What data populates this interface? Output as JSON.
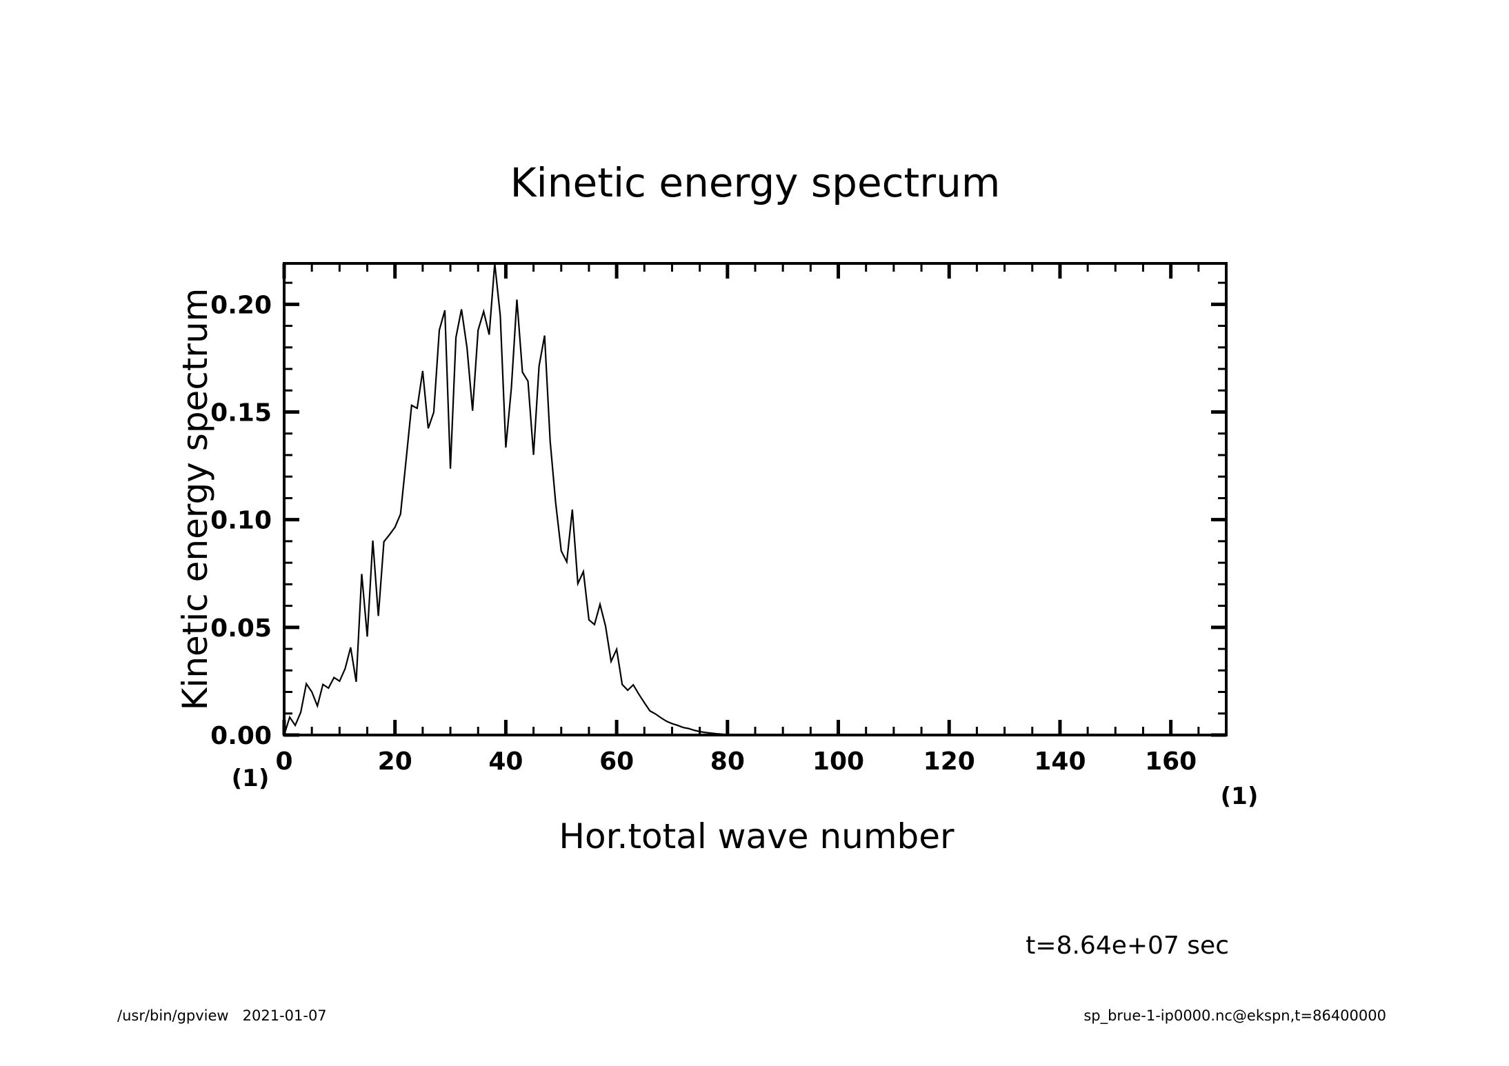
{
  "chart_data": {
    "type": "line",
    "title": "Kinetic energy spectrum",
    "xlabel": "Hor.total wave number",
    "ylabel": "Kinetic energy spectrum",
    "x_unit": "(1)",
    "y_unit": "(1)",
    "xlim": [
      0,
      170
    ],
    "ylim": [
      0,
      0.219
    ],
    "x_major_ticks": [
      0,
      20,
      40,
      60,
      80,
      100,
      120,
      140,
      160
    ],
    "x_tick_labels": [
      "0",
      "20",
      "40",
      "60",
      "80",
      "100",
      "120",
      "140",
      "160"
    ],
    "x_minor_step": 5,
    "y_major_ticks": [
      0,
      0.05,
      0.1,
      0.15,
      0.2
    ],
    "y_tick_labels": [
      "0.00",
      "0.05",
      "0.10",
      "0.15",
      "0.20"
    ],
    "y_minor_step": 0.01,
    "grid": false,
    "legend": "none",
    "series": [
      {
        "name": "Kinetic energy spectrum",
        "color": "#000000",
        "x_start": 0,
        "x_step": 1,
        "values": [
          0.0,
          0.0083,
          0.0045,
          0.0106,
          0.0238,
          0.02,
          0.0135,
          0.0235,
          0.0218,
          0.0267,
          0.025,
          0.0308,
          0.0407,
          0.0247,
          0.0748,
          0.0457,
          0.0903,
          0.0553,
          0.0898,
          0.093,
          0.0965,
          0.1026,
          0.1276,
          0.1531,
          0.1517,
          0.1691,
          0.1424,
          0.1499,
          0.188,
          0.1972,
          0.1237,
          0.1846,
          0.1977,
          0.1798,
          0.1506,
          0.188,
          0.1967,
          0.1859,
          0.219,
          0.1948,
          0.1335,
          0.1611,
          0.2022,
          0.1685,
          0.1643,
          0.1301,
          0.1713,
          0.1855,
          0.1365,
          0.1077,
          0.0855,
          0.0804,
          0.1047,
          0.0703,
          0.0759,
          0.0535,
          0.0513,
          0.0607,
          0.0505,
          0.0342,
          0.0398,
          0.0235,
          0.0208,
          0.0233,
          0.019,
          0.015,
          0.0112,
          0.0098,
          0.008,
          0.0064,
          0.0053,
          0.0045,
          0.0035,
          0.003,
          0.0022,
          0.0016,
          0.0012,
          0.0009,
          0.0006,
          0.0004,
          0.0002,
          0.0001,
          0.0001,
          0.0,
          0.0,
          0.0,
          0.0,
          0.0,
          0.0,
          0.0,
          0.0,
          0.0,
          0.0,
          0.0,
          0.0,
          0.0,
          0.0,
          0.0,
          0.0,
          0.0,
          0.0,
          0.0,
          0.0,
          0.0,
          0.0,
          0.0,
          0.0,
          0.0,
          0.0,
          0.0,
          0.0,
          0.0,
          0.0,
          0.0,
          0.0,
          0.0,
          0.0,
          0.0,
          0.0,
          0.0,
          0.0,
          0.0,
          0.0,
          0.0,
          0.0,
          0.0,
          0.0,
          0.0,
          0.0,
          0.0,
          0.0,
          0.0,
          0.0,
          0.0,
          0.0,
          0.0,
          0.0,
          0.0,
          0.0,
          0.0,
          0.0,
          0.0,
          0.0,
          0.0,
          0.0,
          0.0,
          0.0,
          0.0,
          0.0,
          0.0,
          0.0,
          0.0,
          0.0,
          0.0,
          0.0,
          0.0,
          0.0,
          0.0,
          0.0,
          0.0,
          0.0,
          0.0,
          0.0,
          0.0,
          0.0,
          0.0,
          0.0,
          0.0,
          0.0,
          0.0,
          0.0
        ]
      }
    ],
    "annotations": {
      "time": "t=8.64e+07 sec"
    }
  },
  "footer": {
    "left": "/usr/bin/gpview   2021-01-07",
    "right": "sp_brue-1-ip0000.nc@ekspn,t=86400000"
  }
}
